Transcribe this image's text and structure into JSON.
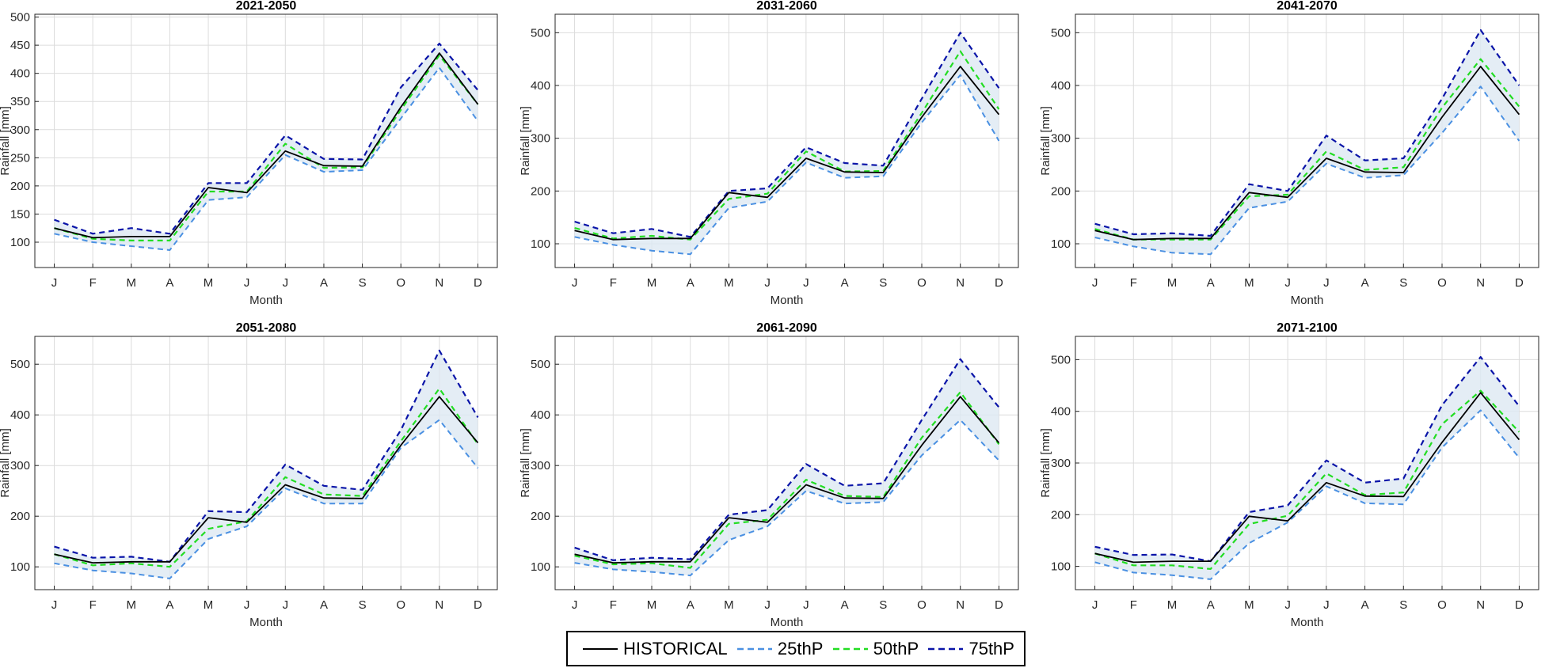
{
  "colors": {
    "historical": "#000000",
    "p25": "#4a90e2",
    "p50": "#22dd22",
    "p75": "#0a14a8",
    "band": "#dde9f2",
    "grid": "#dcdcdc",
    "axis": "#262626"
  },
  "legend": {
    "items": [
      {
        "key": "historical",
        "label": "HISTORICAL",
        "style": "solid"
      },
      {
        "key": "p25",
        "label": "25thP",
        "style": "dashed"
      },
      {
        "key": "p50",
        "label": "50thP",
        "style": "dashed"
      },
      {
        "key": "p75",
        "label": "75thP",
        "style": "dashed"
      }
    ]
  },
  "chart_data": [
    {
      "type": "line",
      "title": "2021-2050",
      "xlabel": "Month",
      "ylabel": "Rainfall [mm]",
      "categories": [
        "J",
        "F",
        "M",
        "A",
        "M",
        "J",
        "J",
        "A",
        "S",
        "O",
        "N",
        "D"
      ],
      "ylim": [
        55,
        505
      ],
      "yticks": [
        100,
        150,
        200,
        250,
        300,
        350,
        400,
        450,
        500
      ],
      "grid": true,
      "series": [
        {
          "name": "HISTORICAL",
          "key": "historical",
          "values": [
            125,
            108,
            110,
            110,
            197,
            188,
            262,
            236,
            235,
            340,
            436,
            345
          ]
        },
        {
          "name": "25thP",
          "key": "p25",
          "values": [
            115,
            100,
            93,
            86,
            175,
            180,
            255,
            225,
            228,
            320,
            410,
            315
          ]
        },
        {
          "name": "50thP",
          "key": "p50",
          "values": [
            125,
            106,
            103,
            103,
            190,
            190,
            275,
            232,
            233,
            335,
            432,
            345
          ]
        },
        {
          "name": "75thP",
          "key": "p75",
          "values": [
            140,
            115,
            125,
            115,
            205,
            205,
            290,
            248,
            247,
            375,
            453,
            370
          ]
        }
      ]
    },
    {
      "type": "line",
      "title": "2031-2060",
      "xlabel": "Month",
      "ylabel": "Rainfall [mm]",
      "categories": [
        "J",
        "F",
        "M",
        "A",
        "M",
        "J",
        "J",
        "A",
        "S",
        "O",
        "N",
        "D"
      ],
      "ylim": [
        55,
        535
      ],
      "yticks": [
        100,
        200,
        300,
        400,
        500
      ],
      "grid": true,
      "series": [
        {
          "name": "HISTORICAL",
          "key": "historical",
          "values": [
            125,
            108,
            110,
            110,
            197,
            188,
            262,
            236,
            235,
            340,
            436,
            345
          ]
        },
        {
          "name": "25thP",
          "key": "p25",
          "values": [
            113,
            98,
            87,
            80,
            168,
            180,
            254,
            225,
            228,
            330,
            420,
            295
          ]
        },
        {
          "name": "50thP",
          "key": "p50",
          "values": [
            130,
            110,
            115,
            108,
            185,
            195,
            275,
            237,
            238,
            348,
            465,
            355
          ]
        },
        {
          "name": "75thP",
          "key": "p75",
          "values": [
            142,
            120,
            128,
            113,
            200,
            205,
            283,
            253,
            248,
            375,
            500,
            395
          ]
        }
      ]
    },
    {
      "type": "line",
      "title": "2041-2070",
      "xlabel": "Month",
      "ylabel": "Rainfall [mm]",
      "categories": [
        "J",
        "F",
        "M",
        "A",
        "M",
        "J",
        "J",
        "A",
        "S",
        "O",
        "N",
        "D"
      ],
      "ylim": [
        55,
        535
      ],
      "yticks": [
        100,
        200,
        300,
        400,
        500
      ],
      "grid": true,
      "series": [
        {
          "name": "HISTORICAL",
          "key": "historical",
          "values": [
            125,
            108,
            110,
            110,
            197,
            188,
            262,
            236,
            235,
            340,
            436,
            345
          ]
        },
        {
          "name": "25thP",
          "key": "p25",
          "values": [
            112,
            95,
            83,
            80,
            168,
            180,
            252,
            225,
            230,
            310,
            398,
            295
          ]
        },
        {
          "name": "50thP",
          "key": "p50",
          "values": [
            128,
            108,
            108,
            108,
            190,
            193,
            275,
            240,
            245,
            358,
            450,
            360
          ]
        },
        {
          "name": "75thP",
          "key": "p75",
          "values": [
            138,
            118,
            120,
            115,
            213,
            200,
            305,
            258,
            262,
            375,
            505,
            400
          ]
        }
      ]
    },
    {
      "type": "line",
      "title": "2051-2080",
      "xlabel": "Month",
      "ylabel": "Rainfall [mm]",
      "categories": [
        "J",
        "F",
        "M",
        "A",
        "M",
        "J",
        "J",
        "A",
        "S",
        "O",
        "N",
        "D"
      ],
      "ylim": [
        55,
        555
      ],
      "yticks": [
        100,
        200,
        300,
        400,
        500
      ],
      "grid": true,
      "series": [
        {
          "name": "HISTORICAL",
          "key": "historical",
          "values": [
            125,
            108,
            110,
            110,
            197,
            188,
            262,
            236,
            235,
            340,
            436,
            345
          ]
        },
        {
          "name": "25thP",
          "key": "p25",
          "values": [
            107,
            93,
            87,
            77,
            155,
            180,
            255,
            225,
            225,
            335,
            390,
            295
          ]
        },
        {
          "name": "50thP",
          "key": "p50",
          "values": [
            125,
            103,
            107,
            100,
            175,
            190,
            277,
            243,
            240,
            348,
            452,
            342
          ]
        },
        {
          "name": "75thP",
          "key": "p75",
          "values": [
            140,
            118,
            120,
            110,
            210,
            208,
            302,
            260,
            252,
            370,
            527,
            395
          ]
        }
      ]
    },
    {
      "type": "line",
      "title": "2061-2090",
      "xlabel": "Month",
      "ylabel": "Rainfall [mm]",
      "categories": [
        "J",
        "F",
        "M",
        "A",
        "M",
        "J",
        "J",
        "A",
        "S",
        "O",
        "N",
        "D"
      ],
      "ylim": [
        55,
        555
      ],
      "yticks": [
        100,
        200,
        300,
        400,
        500
      ],
      "grid": true,
      "series": [
        {
          "name": "HISTORICAL",
          "key": "historical",
          "values": [
            125,
            108,
            110,
            110,
            197,
            188,
            262,
            236,
            235,
            340,
            436,
            345
          ]
        },
        {
          "name": "25thP",
          "key": "p25",
          "values": [
            108,
            95,
            90,
            83,
            153,
            180,
            250,
            225,
            228,
            320,
            390,
            310
          ]
        },
        {
          "name": "50thP",
          "key": "p50",
          "values": [
            122,
            105,
            107,
            98,
            185,
            193,
            272,
            240,
            238,
            355,
            445,
            342
          ]
        },
        {
          "name": "75thP",
          "key": "p75",
          "values": [
            138,
            113,
            118,
            115,
            203,
            212,
            303,
            260,
            265,
            390,
            510,
            415
          ]
        }
      ]
    },
    {
      "type": "line",
      "title": "2071-2100",
      "xlabel": "Month",
      "ylabel": "Rainfall [mm]",
      "categories": [
        "J",
        "F",
        "M",
        "A",
        "M",
        "J",
        "J",
        "A",
        "S",
        "O",
        "N",
        "D"
      ],
      "ylim": [
        55,
        545
      ],
      "yticks": [
        100,
        200,
        300,
        400,
        500
      ],
      "grid": true,
      "series": [
        {
          "name": "HISTORICAL",
          "key": "historical",
          "values": [
            125,
            108,
            110,
            110,
            197,
            188,
            262,
            236,
            235,
            340,
            436,
            345
          ]
        },
        {
          "name": "25thP",
          "key": "p25",
          "values": [
            108,
            88,
            83,
            75,
            145,
            185,
            255,
            222,
            220,
            330,
            402,
            310
          ]
        },
        {
          "name": "50thP",
          "key": "p50",
          "values": [
            125,
            102,
            102,
            95,
            182,
            198,
            280,
            238,
            243,
            375,
            440,
            360
          ]
        },
        {
          "name": "75thP",
          "key": "p75",
          "values": [
            138,
            122,
            123,
            110,
            205,
            218,
            305,
            262,
            270,
            412,
            505,
            410
          ]
        }
      ]
    }
  ]
}
